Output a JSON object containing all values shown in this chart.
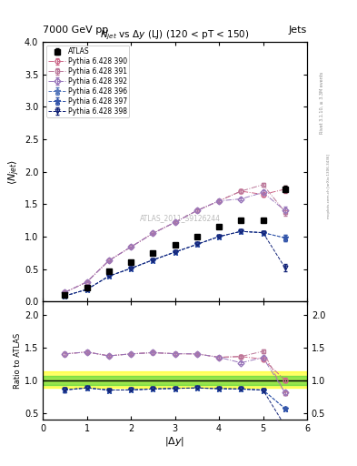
{
  "title_main": "7000 GeV pp",
  "title_right": "Jets",
  "plot_title": "$N_{jet}$ vs $\\Delta y$ (LJ) (120 < pT < 150)",
  "watermark": "ATLAS_2011_S9126244",
  "rivet_text": "Rivet 3.1.10, ≥ 3.3M events",
  "arxiv_text": "mcplots.cern.ch [arXiv:1306.3436]",
  "ylabel_main": "$\\langle N_{jet}\\rangle$",
  "ylabel_ratio": "Ratio to ATLAS",
  "xlabel": "$|\\Delta y|$",
  "xlim": [
    0,
    6.0
  ],
  "ylim_main": [
    0,
    4.0
  ],
  "ylim_ratio": [
    0.4,
    2.2
  ],
  "x_atlas": [
    0.5,
    1.0,
    1.5,
    2.0,
    2.5,
    3.0,
    3.5,
    4.0,
    4.5,
    5.0,
    5.5
  ],
  "y_atlas": [
    0.1,
    0.21,
    0.46,
    0.6,
    0.74,
    0.87,
    1.0,
    1.15,
    1.25,
    1.25,
    1.73
  ],
  "y_atlas_err": [
    0.005,
    0.007,
    0.01,
    0.012,
    0.014,
    0.016,
    0.018,
    0.02,
    0.025,
    0.03,
    0.05
  ],
  "series": [
    {
      "label": "Pythia 6.428 390",
      "color": "#cc6688",
      "marker": "o",
      "markersize": 3.5,
      "linestyle": "-.",
      "x": [
        0.5,
        1.0,
        1.5,
        2.0,
        2.5,
        3.0,
        3.5,
        4.0,
        4.5,
        5.0,
        5.5
      ],
      "y": [
        0.14,
        0.3,
        0.63,
        0.84,
        1.05,
        1.22,
        1.4,
        1.55,
        1.7,
        1.65,
        1.73
      ],
      "yerr": [
        0.003,
        0.005,
        0.008,
        0.01,
        0.012,
        0.014,
        0.016,
        0.018,
        0.022,
        0.03,
        0.055
      ]
    },
    {
      "label": "Pythia 6.428 391",
      "color": "#bb7799",
      "marker": "s",
      "markersize": 3.5,
      "linestyle": "-.",
      "x": [
        0.5,
        1.0,
        1.5,
        2.0,
        2.5,
        3.0,
        3.5,
        4.0,
        4.5,
        5.0,
        5.5
      ],
      "y": [
        0.14,
        0.3,
        0.63,
        0.84,
        1.05,
        1.22,
        1.4,
        1.55,
        1.7,
        1.8,
        1.38
      ],
      "yerr": [
        0.003,
        0.005,
        0.008,
        0.01,
        0.012,
        0.014,
        0.016,
        0.018,
        0.022,
        0.03,
        0.055
      ]
    },
    {
      "label": "Pythia 6.428 392",
      "color": "#9977bb",
      "marker": "D",
      "markersize": 3.5,
      "linestyle": "-.",
      "x": [
        0.5,
        1.0,
        1.5,
        2.0,
        2.5,
        3.0,
        3.5,
        4.0,
        4.5,
        5.0,
        5.5
      ],
      "y": [
        0.14,
        0.3,
        0.63,
        0.84,
        1.05,
        1.22,
        1.4,
        1.55,
        1.58,
        1.68,
        1.4
      ],
      "yerr": [
        0.003,
        0.005,
        0.008,
        0.01,
        0.012,
        0.014,
        0.016,
        0.018,
        0.022,
        0.03,
        0.055
      ]
    },
    {
      "label": "Pythia 6.428 396",
      "color": "#5577bb",
      "marker": "*",
      "markersize": 5,
      "linestyle": "--",
      "x": [
        0.5,
        1.0,
        1.5,
        2.0,
        2.5,
        3.0,
        3.5,
        4.0,
        4.5,
        5.0,
        5.5
      ],
      "y": [
        0.085,
        0.185,
        0.39,
        0.51,
        0.64,
        0.76,
        0.88,
        1.0,
        1.08,
        1.06,
        0.98
      ],
      "yerr": [
        0.003,
        0.004,
        0.007,
        0.009,
        0.011,
        0.013,
        0.015,
        0.017,
        0.02,
        0.025,
        0.045
      ]
    },
    {
      "label": "Pythia 6.428 397",
      "color": "#3355aa",
      "marker": "*",
      "markersize": 5,
      "linestyle": "--",
      "x": [
        0.5,
        1.0,
        1.5,
        2.0,
        2.5,
        3.0,
        3.5,
        4.0,
        4.5,
        5.0,
        5.5
      ],
      "y": [
        0.085,
        0.185,
        0.39,
        0.51,
        0.64,
        0.76,
        0.88,
        1.0,
        1.08,
        1.06,
        0.98
      ],
      "yerr": [
        0.003,
        0.004,
        0.007,
        0.009,
        0.011,
        0.013,
        0.015,
        0.017,
        0.02,
        0.025,
        0.045
      ]
    },
    {
      "label": "Pythia 6.428 398",
      "color": "#112277",
      "marker": "v",
      "markersize": 3.5,
      "linestyle": "--",
      "x": [
        0.5,
        1.0,
        1.5,
        2.0,
        2.5,
        3.0,
        3.5,
        4.0,
        4.5,
        5.0,
        5.5
      ],
      "y": [
        0.085,
        0.185,
        0.39,
        0.51,
        0.64,
        0.76,
        0.88,
        1.0,
        1.08,
        1.06,
        0.52
      ],
      "yerr": [
        0.003,
        0.004,
        0.007,
        0.009,
        0.011,
        0.013,
        0.015,
        0.017,
        0.02,
        0.025,
        0.06
      ]
    }
  ],
  "ratio_yellow_band": {
    "lo": 0.88,
    "hi": 1.14
  },
  "ratio_green_band": {
    "lo": 0.93,
    "hi": 1.07
  }
}
